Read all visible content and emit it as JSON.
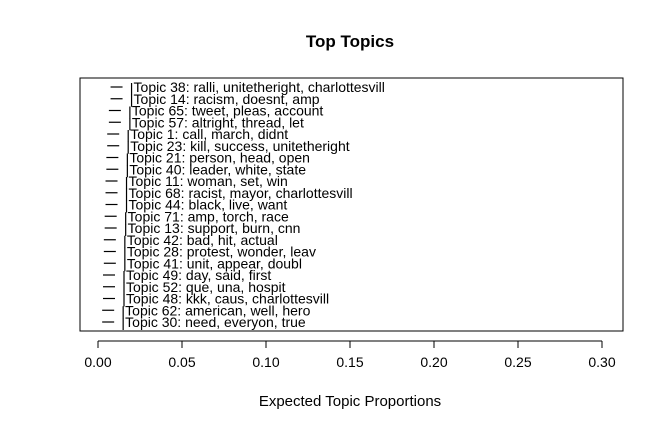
{
  "chart_data": {
    "type": "scatter",
    "title": "Top Topics",
    "xlabel": "Expected Topic Proportions",
    "xlim": [
      0.0,
      0.3
    ],
    "x_ticks": [
      "0.00",
      "0.05",
      "0.10",
      "0.15",
      "0.20",
      "0.25",
      "0.30"
    ],
    "points": [
      {
        "label": "Topic 38: ralli, unitetheright, charlottesvill",
        "x": 0.017
      },
      {
        "label": "Topic 14: racism, doesnt, amp",
        "x": 0.017
      },
      {
        "label": "Topic 65: tweet, pleas, account",
        "x": 0.016
      },
      {
        "label": "Topic 57: altright, thread, let",
        "x": 0.016
      },
      {
        "label": "Topic 1: call, march, didnt",
        "x": 0.015
      },
      {
        "label": "Topic 23: kill, success, unitetheright",
        "x": 0.015
      },
      {
        "label": "Topic 21: person, head, open",
        "x": 0.0145
      },
      {
        "label": "Topic 40: leader, white, state",
        "x": 0.0145
      },
      {
        "label": "Topic 11: woman, set, win",
        "x": 0.014
      },
      {
        "label": "Topic 68: racist, mayor, charlottesvill",
        "x": 0.014
      },
      {
        "label": "Topic 44: black, live, want",
        "x": 0.014
      },
      {
        "label": "Topic 71: amp, torch, race",
        "x": 0.0135
      },
      {
        "label": "Topic 13: support, burn, cnn",
        "x": 0.0135
      },
      {
        "label": "Topic 42: bad, hit, actual",
        "x": 0.013
      },
      {
        "label": "Topic 28: protest, wonder, leav",
        "x": 0.013
      },
      {
        "label": "Topic 41: unit, appear, doubl",
        "x": 0.013
      },
      {
        "label": "Topic 49: day, said, first",
        "x": 0.0125
      },
      {
        "label": "Topic 52: que, una, hospit",
        "x": 0.0125
      },
      {
        "label": "Topic 48: kkk, caus, charlottesvill",
        "x": 0.0125
      },
      {
        "label": "Topic 62: american, well, hero",
        "x": 0.012
      },
      {
        "label": "Topic 30: need, everyon, true",
        "x": 0.012
      }
    ]
  }
}
